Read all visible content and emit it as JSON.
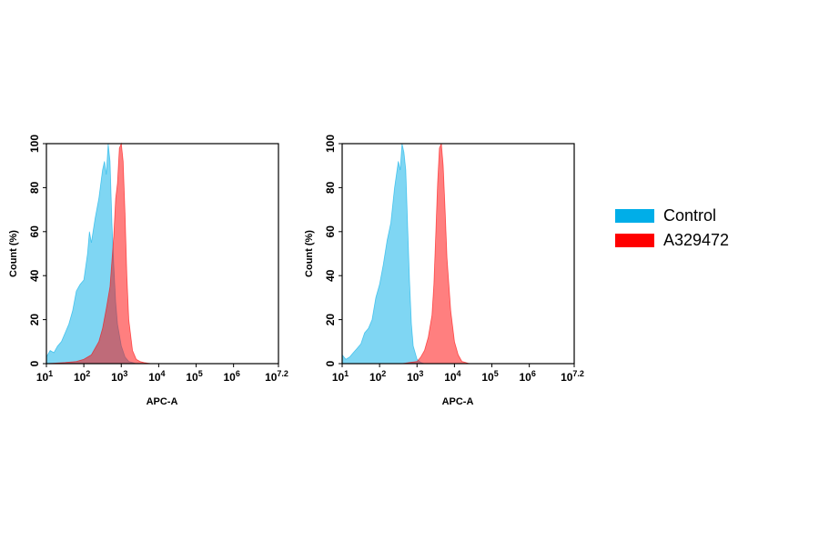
{
  "legend": {
    "items": [
      {
        "label": "Control",
        "color": "#00aee8"
      },
      {
        "label": "A329472",
        "color": "#ff0000"
      }
    ]
  },
  "chart_data": [
    {
      "type": "area",
      "xlabel": "APC-A",
      "ylabel": "Count  (%)",
      "x_scale": "log10",
      "xlim": [
        1,
        7.2
      ],
      "ylim": [
        0,
        100
      ],
      "x_tick_labels": [
        {
          "base": "10",
          "exp": "1",
          "value": 1
        },
        {
          "base": "10",
          "exp": "2",
          "value": 2
        },
        {
          "base": "10",
          "exp": "3",
          "value": 3
        },
        {
          "base": "10",
          "exp": "4",
          "value": 4
        },
        {
          "base": "10",
          "exp": "5",
          "value": 5
        },
        {
          "base": "10",
          "exp": "6",
          "value": 6
        },
        {
          "base": "10",
          "exp": "7.2",
          "value": 7.2
        }
      ],
      "y_ticks": [
        0,
        20,
        40,
        60,
        80,
        100
      ],
      "series": [
        {
          "name": "Control",
          "color": "#00aee8",
          "x": [
            1.0,
            1.1,
            1.2,
            1.3,
            1.4,
            1.5,
            1.6,
            1.7,
            1.8,
            1.9,
            2.0,
            2.1,
            2.15,
            2.2,
            2.3,
            2.4,
            2.5,
            2.55,
            2.6,
            2.65,
            2.7,
            2.75,
            2.8,
            2.85,
            2.9,
            3.0,
            3.1,
            3.2,
            3.3,
            3.4,
            3.6,
            3.8
          ],
          "y": [
            3,
            6,
            5,
            8,
            10,
            14,
            18,
            24,
            33,
            36,
            38,
            50,
            60,
            55,
            66,
            75,
            88,
            92,
            86,
            100,
            92,
            64,
            45,
            28,
            18,
            8,
            3,
            1,
            0.5,
            0,
            0,
            0
          ]
        },
        {
          "name": "A329472",
          "color": "#ff0000",
          "x": [
            1.0,
            1.5,
            1.8,
            2.0,
            2.2,
            2.4,
            2.5,
            2.6,
            2.7,
            2.8,
            2.85,
            2.9,
            2.95,
            3.0,
            3.05,
            3.1,
            3.15,
            3.2,
            3.3,
            3.4,
            3.5,
            3.6,
            3.8,
            4.0
          ],
          "y": [
            0,
            0.5,
            1,
            2,
            4,
            10,
            16,
            25,
            35,
            58,
            75,
            82,
            98,
            100,
            92,
            68,
            40,
            20,
            6,
            2,
            1,
            0.5,
            0,
            0
          ]
        }
      ]
    },
    {
      "type": "area",
      "xlabel": "APC-A",
      "ylabel": "Count  (%)",
      "x_scale": "log10",
      "xlim": [
        1,
        7.2
      ],
      "ylim": [
        0,
        100
      ],
      "x_tick_labels": [
        {
          "base": "10",
          "exp": "1",
          "value": 1
        },
        {
          "base": "10",
          "exp": "2",
          "value": 2
        },
        {
          "base": "10",
          "exp": "3",
          "value": 3
        },
        {
          "base": "10",
          "exp": "4",
          "value": 4
        },
        {
          "base": "10",
          "exp": "5",
          "value": 5
        },
        {
          "base": "10",
          "exp": "6",
          "value": 6
        },
        {
          "base": "10",
          "exp": "7.2",
          "value": 7.2
        }
      ],
      "y_ticks": [
        0,
        20,
        40,
        60,
        80,
        100
      ],
      "series": [
        {
          "name": "Control",
          "color": "#00aee8",
          "x": [
            1.0,
            1.1,
            1.2,
            1.3,
            1.4,
            1.5,
            1.6,
            1.7,
            1.8,
            1.9,
            2.0,
            2.1,
            2.2,
            2.3,
            2.4,
            2.5,
            2.55,
            2.6,
            2.65,
            2.7,
            2.75,
            2.8,
            2.85,
            2.9,
            3.0,
            3.1,
            3.2
          ],
          "y": [
            4,
            2,
            3,
            5,
            7,
            9,
            14,
            16,
            20,
            30,
            36,
            45,
            56,
            64,
            80,
            92,
            88,
            100,
            96,
            88,
            62,
            38,
            18,
            8,
            2,
            0.5,
            0
          ]
        },
        {
          "name": "A329472",
          "color": "#ff0000",
          "x": [
            2.6,
            2.8,
            3.0,
            3.1,
            3.2,
            3.3,
            3.4,
            3.45,
            3.5,
            3.55,
            3.6,
            3.65,
            3.7,
            3.75,
            3.8,
            3.9,
            4.0,
            4.1,
            4.2,
            4.3,
            4.4
          ],
          "y": [
            0,
            0.5,
            1,
            3,
            6,
            12,
            22,
            36,
            58,
            82,
            98,
            100,
            90,
            70,
            48,
            24,
            10,
            4,
            1,
            0.5,
            0
          ]
        }
      ]
    }
  ]
}
